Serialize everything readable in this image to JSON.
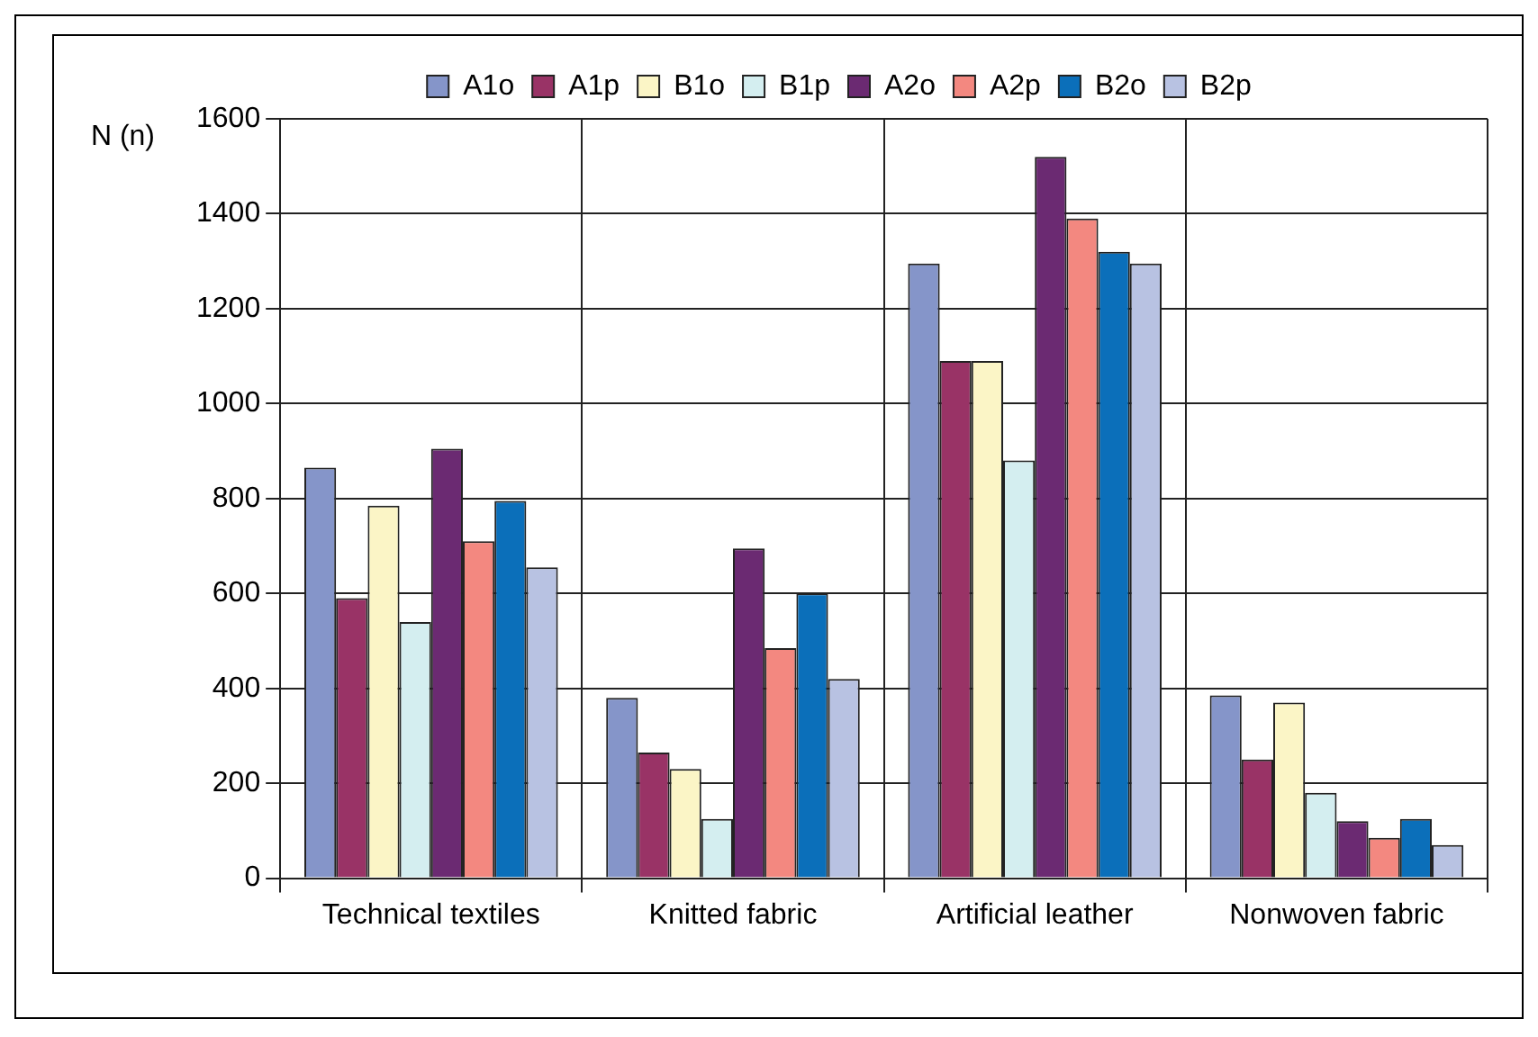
{
  "chart_data": {
    "type": "bar",
    "ylabel": "N (n)",
    "categories": [
      "Technical textiles",
      "Knitted fabric",
      "Artificial leather",
      "Nonwoven fabric"
    ],
    "series": [
      {
        "name": "A1o",
        "color": "#8595c9",
        "values": [
          865,
          380,
          1295,
          385
        ]
      },
      {
        "name": "A1p",
        "color": "#993366",
        "values": [
          590,
          265,
          1090,
          250
        ]
      },
      {
        "name": "B1o",
        "color": "#fbf5c6",
        "values": [
          785,
          230,
          1090,
          370
        ]
      },
      {
        "name": "B1p",
        "color": "#d4eef0",
        "values": [
          540,
          125,
          880,
          180
        ]
      },
      {
        "name": "A2o",
        "color": "#6b2a72",
        "values": [
          905,
          695,
          1520,
          120
        ]
      },
      {
        "name": "A2p",
        "color": "#f38880",
        "values": [
          710,
          485,
          1390,
          85
        ]
      },
      {
        "name": "B2o",
        "color": "#0b6fba",
        "values": [
          795,
          600,
          1320,
          125
        ]
      },
      {
        "name": "B2p",
        "color": "#b8c2e2",
        "values": [
          655,
          420,
          1295,
          70
        ]
      }
    ],
    "ylim": [
      0,
      1600
    ],
    "yticks": [
      0,
      200,
      400,
      600,
      800,
      1000,
      1200,
      1400,
      1600
    ],
    "grid": true,
    "legend": "top"
  }
}
